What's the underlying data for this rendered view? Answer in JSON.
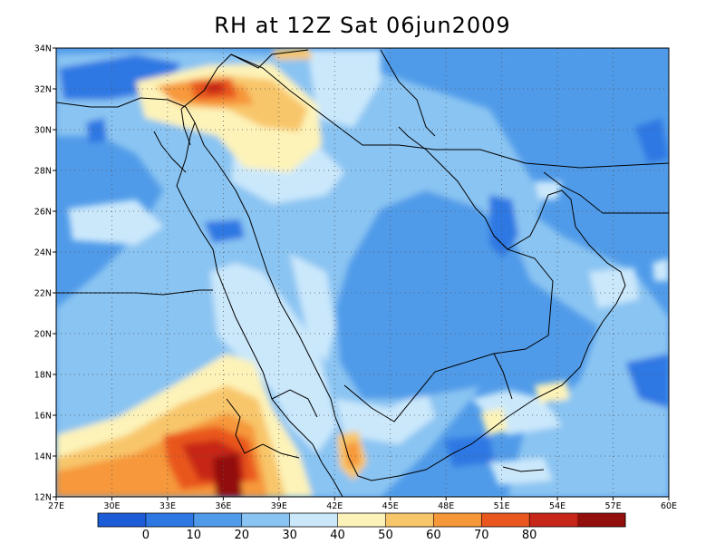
{
  "title": "RH at 12Z Sat 06jun2009",
  "map": {
    "lon_range": [
      27,
      60
    ],
    "lat_range": [
      12,
      34
    ],
    "lon_ticks": [
      "27E",
      "30E",
      "33E",
      "36E",
      "39E",
      "42E",
      "45E",
      "48E",
      "51E",
      "54E",
      "57E",
      "60E"
    ],
    "lat_ticks": [
      "12N",
      "14N",
      "16N",
      "18N",
      "20N",
      "22N",
      "24N",
      "26N",
      "28N",
      "30N",
      "32N",
      "34N"
    ],
    "grid": "dotted"
  },
  "colorbar": {
    "colors": [
      "#1c5cd6",
      "#2e78e3",
      "#509be9",
      "#8ac4f2",
      "#cbe8fb",
      "#fdf3b8",
      "#f8c66a",
      "#f6983a",
      "#e9571f",
      "#c72718",
      "#920f0b"
    ],
    "labels": [
      "0",
      "10",
      "20",
      "30",
      "40",
      "50",
      "60",
      "70",
      "80"
    ]
  }
}
